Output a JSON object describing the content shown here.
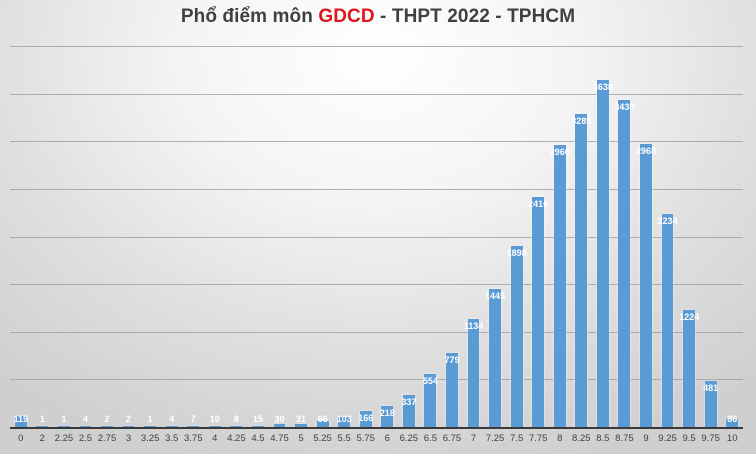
{
  "title": {
    "prefix": "Phổ điểm môn ",
    "highlight": "GDCD",
    "suffix": " - THPT 2022 - TPHCM"
  },
  "colors": {
    "bar": "#5b9bd5",
    "title": "#404040",
    "highlight": "#e0141b",
    "label": "#ffffff"
  },
  "chart_data": {
    "type": "bar",
    "title": "Phổ điểm môn GDCD - THPT 2022 - TPHCM",
    "xlabel": "",
    "ylabel": "",
    "ylim": [
      0,
      4000
    ],
    "grid": true,
    "gridline_step": 500,
    "legend": "none",
    "y_axis_labels_shown": false,
    "categories": [
      "0",
      "2",
      "2.25",
      "2.5",
      "2.75",
      "3",
      "3.25",
      "3.5",
      "3.75",
      "4",
      "4.25",
      "4.5",
      "4.75",
      "5",
      "5.25",
      "5.5",
      "5.75",
      "6",
      "6.25",
      "6.5",
      "6.75",
      "7",
      "7.25",
      "7.5",
      "7.75",
      "8",
      "8.25",
      "8.5",
      "8.75",
      "9",
      "9.25",
      "9.5",
      "9.75",
      "10"
    ],
    "values": [
      119,
      1,
      1,
      4,
      2,
      2,
      1,
      4,
      7,
      10,
      8,
      15,
      30,
      31,
      66,
      103,
      166,
      218,
      337,
      554,
      779,
      1134,
      1445,
      1898,
      2416,
      2960,
      3289,
      3638,
      3430,
      2968,
      2234,
      1224,
      481,
      86
    ]
  }
}
